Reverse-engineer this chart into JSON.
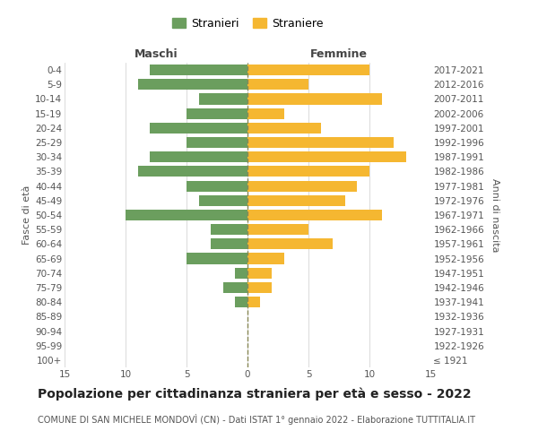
{
  "age_groups": [
    "100+",
    "95-99",
    "90-94",
    "85-89",
    "80-84",
    "75-79",
    "70-74",
    "65-69",
    "60-64",
    "55-59",
    "50-54",
    "45-49",
    "40-44",
    "35-39",
    "30-34",
    "25-29",
    "20-24",
    "15-19",
    "10-14",
    "5-9",
    "0-4"
  ],
  "birth_years": [
    "≤ 1921",
    "1922-1926",
    "1927-1931",
    "1932-1936",
    "1937-1941",
    "1942-1946",
    "1947-1951",
    "1952-1956",
    "1957-1961",
    "1962-1966",
    "1967-1971",
    "1972-1976",
    "1977-1981",
    "1982-1986",
    "1987-1991",
    "1992-1996",
    "1997-2001",
    "2002-2006",
    "2007-2011",
    "2012-2016",
    "2017-2021"
  ],
  "maschi": [
    0,
    0,
    0,
    0,
    1,
    2,
    1,
    5,
    3,
    3,
    10,
    4,
    5,
    9,
    8,
    5,
    8,
    5,
    4,
    9,
    8
  ],
  "femmine": [
    0,
    0,
    0,
    0,
    1,
    2,
    2,
    3,
    7,
    5,
    11,
    8,
    9,
    10,
    13,
    12,
    6,
    3,
    11,
    5,
    10
  ],
  "maschi_color": "#6b9e5e",
  "femmine_color": "#f5b731",
  "center_line_color": "#888855",
  "grid_color": "#cccccc",
  "background_color": "#ffffff",
  "title": "Popolazione per cittadinanza straniera per età e sesso - 2022",
  "subtitle": "COMUNE DI SAN MICHELE MONDOVÌ (CN) - Dati ISTAT 1° gennaio 2022 - Elaborazione TUTTITALIA.IT",
  "ylabel_left": "Fasce di età",
  "ylabel_right": "Anni di nascita",
  "xlabel_left": "Maschi",
  "xlabel_right": "Femmine",
  "legend_stranieri": "Stranieri",
  "legend_straniere": "Straniere",
  "xlim": 15,
  "title_fontsize": 10,
  "subtitle_fontsize": 7,
  "header_fontsize": 9,
  "label_fontsize": 8,
  "tick_fontsize": 7.5,
  "legend_fontsize": 9
}
